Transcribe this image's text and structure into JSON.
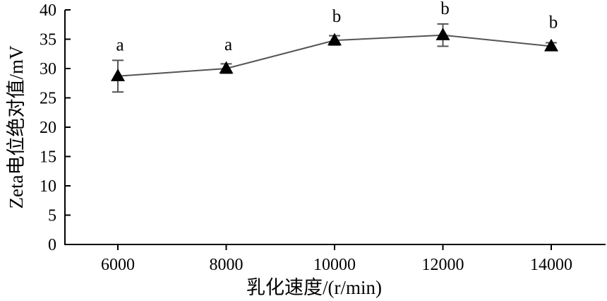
{
  "chart_data": {
    "type": "line",
    "title": "",
    "xlabel": "乳化速度/(r/min)",
    "ylabel": "Zeta电位绝对值/mV",
    "x": [
      "6000",
      "8000",
      "10000",
      "12000",
      "14000"
    ],
    "y_ticks": [
      "0",
      "5",
      "10",
      "15",
      "20",
      "25",
      "30",
      "35",
      "40"
    ],
    "ylim": [
      0,
      40
    ],
    "grid": false,
    "legend": "none",
    "series": [
      {
        "values": [
          28.7,
          30.0,
          34.8,
          35.7,
          33.8
        ],
        "errors": [
          2.7,
          0.8,
          0.8,
          1.9,
          0.6
        ],
        "labels": [
          "a",
          "a",
          "b",
          "b",
          "b"
        ],
        "marker": "triangle",
        "color": "#000000",
        "line_color": "#555555"
      }
    ]
  }
}
